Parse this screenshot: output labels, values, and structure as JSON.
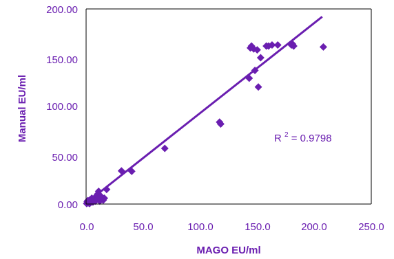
{
  "colors": {
    "series": "#6a1eb0",
    "frame": "#000000",
    "text": "#6a1eb0"
  },
  "chart_data": {
    "type": "scatter",
    "xlabel": "MAGO EU/ml",
    "ylabel": "Manual EU/ml",
    "xlim": [
      0,
      250
    ],
    "ylim": [
      0,
      200
    ],
    "x_ticks": [
      "0.0",
      "50.0",
      "100.0",
      "150.0",
      "200.0",
      "250.0"
    ],
    "y_ticks": [
      "0.00",
      "50.00",
      "100.00",
      "150.00",
      "200.00"
    ],
    "grid": false,
    "legend": "none",
    "series": [
      {
        "marker": "diamond",
        "points": [
          [
            0.5,
            0.5
          ],
          [
            1,
            1
          ],
          [
            1,
            2.5
          ],
          [
            1.5,
            3.5
          ],
          [
            2,
            2
          ],
          [
            2.5,
            1
          ],
          [
            3,
            4
          ],
          [
            3,
            0.5
          ],
          [
            4,
            1.5
          ],
          [
            5,
            6
          ],
          [
            5,
            3
          ],
          [
            6,
            2
          ],
          [
            7,
            5
          ],
          [
            8,
            3
          ],
          [
            8,
            7
          ],
          [
            9,
            4
          ],
          [
            10,
            5
          ],
          [
            10,
            10
          ],
          [
            11,
            13
          ],
          [
            12,
            3
          ],
          [
            13,
            8
          ],
          [
            15,
            4
          ],
          [
            16,
            6
          ],
          [
            18,
            15
          ],
          [
            31,
            34
          ],
          [
            40,
            33.5
          ],
          [
            69,
            57
          ],
          [
            117,
            84
          ],
          [
            118,
            82
          ],
          [
            143,
            129
          ],
          [
            144,
            160
          ],
          [
            145,
            162
          ],
          [
            147,
            159
          ],
          [
            148,
            137
          ],
          [
            150,
            158
          ],
          [
            151,
            120
          ],
          [
            153,
            150
          ],
          [
            158,
            162
          ],
          [
            160,
            162
          ],
          [
            163,
            163
          ],
          [
            168,
            163
          ],
          [
            180,
            163
          ],
          [
            181,
            164
          ],
          [
            182,
            162
          ],
          [
            208,
            161
          ]
        ]
      }
    ],
    "trendline": {
      "type": "linear",
      "from": [
        0,
        1
      ],
      "to": [
        207,
        192
      ]
    },
    "annotation": {
      "r_symbol": "R",
      "superscript": "2",
      "value_text": " = 0.9798"
    }
  }
}
